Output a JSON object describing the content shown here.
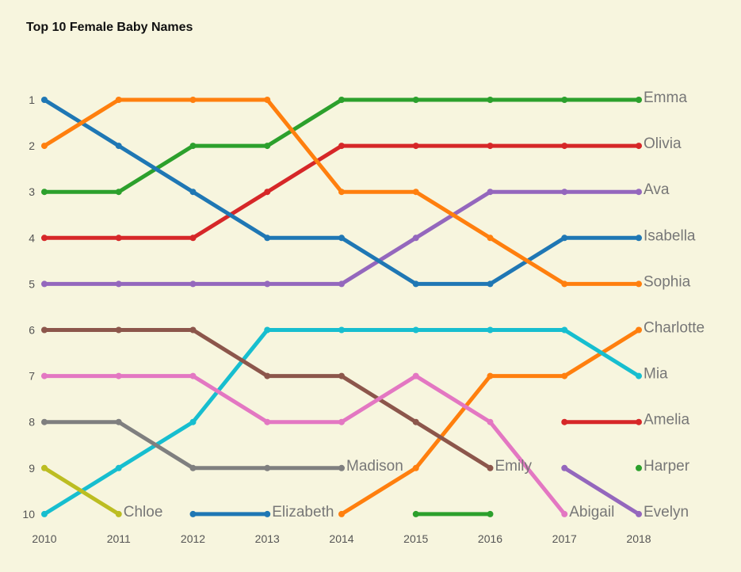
{
  "chart_data": {
    "type": "line",
    "title": "Top 10 Female Baby Names",
    "xlabel": "",
    "ylabel": "",
    "x": [
      2010,
      2011,
      2012,
      2013,
      2014,
      2015,
      2016,
      2017,
      2018
    ],
    "ylim": [
      1,
      10
    ],
    "y_inverted": true,
    "y_ticks": [
      "1",
      "2",
      "3",
      "4",
      "5",
      "6",
      "7",
      "8",
      "9",
      "10"
    ],
    "x_ticks": [
      "2010",
      "2011",
      "2012",
      "2013",
      "2014",
      "2015",
      "2016",
      "2017",
      "2018"
    ],
    "grid": false,
    "legend": "none",
    "series": [
      {
        "name": "Emma",
        "color": "#2ca02c",
        "values": [
          3,
          3,
          2,
          2,
          1,
          1,
          1,
          1,
          1
        ],
        "label_at": 2018
      },
      {
        "name": "Olivia",
        "color": "#d62728",
        "values": [
          4,
          4,
          4,
          3,
          2,
          2,
          2,
          2,
          2
        ],
        "label_at": 2018
      },
      {
        "name": "Ava",
        "color": "#9467bd",
        "values": [
          5,
          5,
          5,
          5,
          5,
          4,
          3,
          3,
          3
        ],
        "label_at": 2018
      },
      {
        "name": "Isabella",
        "color": "#1f77b4",
        "values": [
          1,
          2,
          3,
          4,
          4,
          5,
          5,
          4,
          4
        ],
        "label_at": 2018
      },
      {
        "name": "Sophia",
        "color": "#ff7f0e",
        "values": [
          2,
          1,
          1,
          1,
          3,
          3,
          4,
          5,
          5
        ],
        "label_at": 2018
      },
      {
        "name": "Charlotte",
        "color": "#ff7f0e",
        "values": [
          null,
          null,
          null,
          null,
          10,
          9,
          7,
          7,
          6
        ],
        "label_at": 2018
      },
      {
        "name": "Mia",
        "color": "#17becf",
        "values": [
          10,
          9,
          8,
          6,
          6,
          6,
          6,
          6,
          7
        ],
        "label_at": 2018
      },
      {
        "name": "Amelia",
        "color": "#d62728",
        "values": [
          null,
          null,
          null,
          null,
          null,
          null,
          null,
          8,
          8
        ],
        "label_at": 2018
      },
      {
        "name": "Harper",
        "color": "#2ca02c",
        "values": [
          null,
          null,
          null,
          null,
          null,
          null,
          null,
          null,
          9
        ],
        "label_at": 2018
      },
      {
        "name": "Evelyn",
        "color": "#9467bd",
        "values": [
          null,
          null,
          null,
          null,
          null,
          null,
          null,
          9,
          10
        ],
        "label_at": 2018
      },
      {
        "name": "Madison",
        "color": "#7f7f7f",
        "values": [
          8,
          8,
          9,
          9,
          9,
          null,
          null,
          null,
          null
        ],
        "label_at": 2014
      },
      {
        "name": "Emily",
        "color": "#8c564b",
        "values": [
          6,
          6,
          6,
          7,
          7,
          8,
          9,
          null,
          null
        ],
        "label_at": 2016
      },
      {
        "name": "Abigail",
        "color": "#e377c2",
        "values": [
          7,
          7,
          7,
          8,
          8,
          7,
          8,
          10,
          null
        ],
        "label_at": 2017
      },
      {
        "name": "Chloe",
        "color": "#bcbd22",
        "values": [
          9,
          10,
          null,
          null,
          null,
          null,
          null,
          null,
          null
        ],
        "label_at": 2011
      },
      {
        "name": "Elizabeth",
        "color": "#1f77b4",
        "values": [
          null,
          null,
          10,
          10,
          null,
          null,
          null,
          null,
          null
        ],
        "label_at": 2013
      },
      {
        "name": "",
        "color": "#2ca02c",
        "values": [
          null,
          null,
          null,
          null,
          null,
          10,
          10,
          null,
          null
        ],
        "label_at": null
      }
    ]
  }
}
